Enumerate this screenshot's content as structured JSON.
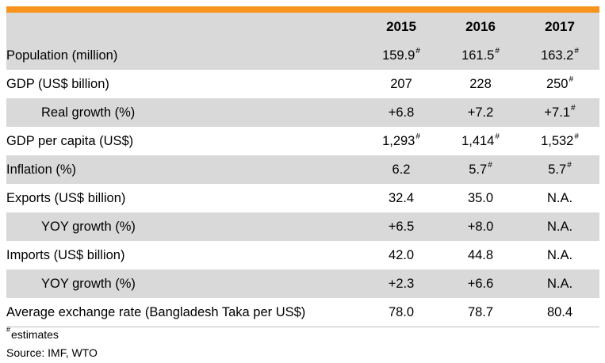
{
  "table": {
    "columns": [
      "",
      "2015",
      "2016",
      "2017"
    ],
    "rows": [
      {
        "label": "Population (million)",
        "indent": false,
        "shaded": true,
        "cells": [
          {
            "v": "159.9",
            "m": "#"
          },
          {
            "v": "161.5",
            "m": "#"
          },
          {
            "v": "163.2",
            "m": "#"
          }
        ]
      },
      {
        "label": "GDP (US$ billion)",
        "indent": false,
        "shaded": false,
        "cells": [
          {
            "v": "207",
            "m": ""
          },
          {
            "v": "228",
            "m": ""
          },
          {
            "v": "250",
            "m": "#"
          }
        ]
      },
      {
        "label": "Real growth (%)",
        "indent": true,
        "shaded": true,
        "cells": [
          {
            "v": "+6.8",
            "m": ""
          },
          {
            "v": "+7.2",
            "m": ""
          },
          {
            "v": "+7.1",
            "m": "#"
          }
        ]
      },
      {
        "label": "GDP per capita (US$)",
        "indent": false,
        "shaded": false,
        "cells": [
          {
            "v": "1,293",
            "m": "#"
          },
          {
            "v": "1,414",
            "m": "#"
          },
          {
            "v": "1,532",
            "m": "#"
          }
        ]
      },
      {
        "label": "Inflation (%)",
        "indent": false,
        "shaded": true,
        "cells": [
          {
            "v": "6.2",
            "m": ""
          },
          {
            "v": "5.7",
            "m": "#"
          },
          {
            "v": "5.7",
            "m": "#"
          }
        ]
      },
      {
        "label": "Exports (US$ billion)",
        "indent": false,
        "shaded": false,
        "cells": [
          {
            "v": "32.4",
            "m": ""
          },
          {
            "v": "35.0",
            "m": ""
          },
          {
            "v": "N.A.",
            "m": ""
          }
        ]
      },
      {
        "label": "YOY growth (%)",
        "indent": true,
        "shaded": true,
        "cells": [
          {
            "v": "+6.5",
            "m": ""
          },
          {
            "v": "+8.0",
            "m": ""
          },
          {
            "v": "N.A.",
            "m": ""
          }
        ]
      },
      {
        "label": "Imports (US$ billion)",
        "indent": false,
        "shaded": false,
        "cells": [
          {
            "v": "42.0",
            "m": ""
          },
          {
            "v": "44.8",
            "m": ""
          },
          {
            "v": "N.A.",
            "m": ""
          }
        ]
      },
      {
        "label": "YOY growth (%)",
        "indent": true,
        "shaded": true,
        "cells": [
          {
            "v": "+2.3",
            "m": ""
          },
          {
            "v": "+6.6",
            "m": ""
          },
          {
            "v": "N.A.",
            "m": ""
          }
        ]
      },
      {
        "label": "Average exchange rate (Bangladesh Taka per US$)",
        "indent": false,
        "shaded": false,
        "cells": [
          {
            "v": "78.0",
            "m": ""
          },
          {
            "v": "78.7",
            "m": ""
          },
          {
            "v": "80.4",
            "m": ""
          }
        ]
      }
    ]
  },
  "footnotes": {
    "estimate_marker": "#",
    "estimate_text": "estimates",
    "source": "Source: IMF, WTO"
  },
  "colors": {
    "accent": "#f7941d",
    "shading": "#d9d9d9"
  }
}
